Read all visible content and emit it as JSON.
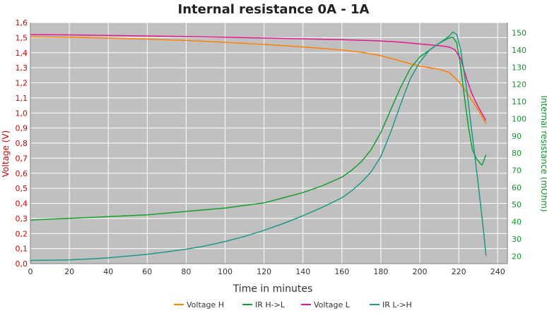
{
  "chart_data": {
    "type": "line",
    "title": "Internal resistance  0A - 1A",
    "xlabel": "Time in minutes",
    "ylabel_left": "Voltage (V)",
    "ylabel_right": "Internal resistance (mOhm)",
    "xlim": [
      0,
      245
    ],
    "ylim_left": [
      0.0,
      1.6
    ],
    "ylim_right": [
      15.6,
      156.0
    ],
    "x_ticks": [
      "0",
      "20",
      "40",
      "60",
      "80",
      "100",
      "120",
      "140",
      "160",
      "180",
      "200",
      "220",
      "240"
    ],
    "y_left_ticks": [
      "0,0",
      "0,1",
      "0,2",
      "0,3",
      "0,4",
      "0,5",
      "0,6",
      "0,7",
      "0,8",
      "0,9",
      "1,0",
      "1,1",
      "1,2",
      "1,3",
      "1,4",
      "1,5",
      "1,6"
    ],
    "y_right_ticks": [
      "20",
      "30",
      "40",
      "50",
      "60",
      "70",
      "80",
      "90",
      "100",
      "110",
      "120",
      "130",
      "140",
      "150"
    ],
    "grid": true,
    "legend_position": "bottom",
    "background": "#c0c0c0",
    "series": [
      {
        "name": "Voltage H",
        "axis": "left",
        "color": "#ff8000",
        "x": [
          0,
          20,
          40,
          60,
          80,
          100,
          120,
          140,
          160,
          170,
          180,
          190,
          200,
          210,
          215,
          220,
          225,
          230,
          234
        ],
        "y": [
          1.505,
          1.502,
          1.497,
          1.49,
          1.481,
          1.469,
          1.455,
          1.438,
          1.418,
          1.403,
          1.38,
          1.345,
          1.31,
          1.29,
          1.27,
          1.21,
          1.12,
          1.02,
          0.93
        ]
      },
      {
        "name": "IR H->L",
        "axis": "right",
        "color": "#11a032",
        "x": [
          0,
          10,
          20,
          30,
          40,
          50,
          60,
          70,
          80,
          90,
          100,
          110,
          120,
          130,
          140,
          150,
          160,
          165,
          170,
          175,
          180,
          185,
          190,
          195,
          200,
          205,
          210,
          215,
          217,
          219,
          221,
          223,
          225,
          227,
          229,
          231,
          232,
          233,
          234
        ],
        "y": [
          41,
          41.5,
          42,
          42.5,
          43,
          43.5,
          44,
          45,
          46,
          47,
          48,
          49.5,
          51,
          54,
          57,
          61,
          66,
          70,
          75,
          82,
          92,
          105,
          118,
          129,
          136,
          140,
          144,
          147,
          147.5,
          144,
          130,
          112,
          95,
          82,
          77,
          74,
          73,
          76,
          79
        ]
      },
      {
        "name": "Voltage L",
        "axis": "left",
        "color": "#e01a8a",
        "x": [
          0,
          20,
          40,
          60,
          80,
          100,
          120,
          140,
          160,
          180,
          190,
          200,
          210,
          215,
          218,
          221,
          224,
          227,
          230,
          234
        ],
        "y": [
          1.52,
          1.518,
          1.515,
          1.511,
          1.507,
          1.502,
          1.497,
          1.492,
          1.487,
          1.478,
          1.47,
          1.458,
          1.447,
          1.438,
          1.42,
          1.36,
          1.23,
          1.12,
          1.04,
          0.95
        ]
      },
      {
        "name": "IR L->H",
        "axis": "right",
        "color": "#1a9a86",
        "x": [
          0,
          10,
          20,
          30,
          40,
          50,
          60,
          70,
          80,
          90,
          100,
          110,
          120,
          130,
          140,
          150,
          160,
          165,
          170,
          175,
          180,
          185,
          190,
          195,
          200,
          205,
          210,
          215,
          217,
          219,
          221,
          224,
          227,
          230,
          233,
          234
        ],
        "y": [
          17.5,
          17.6,
          17.8,
          18.3,
          19,
          20,
          21,
          22.5,
          24,
          26,
          28.5,
          31.5,
          35,
          39,
          43.5,
          48.5,
          54,
          58,
          63,
          69,
          78,
          92,
          108,
          123,
          133,
          140,
          144,
          148,
          150.5,
          149,
          140,
          118,
          90,
          62,
          32,
          20
        ]
      }
    ]
  }
}
